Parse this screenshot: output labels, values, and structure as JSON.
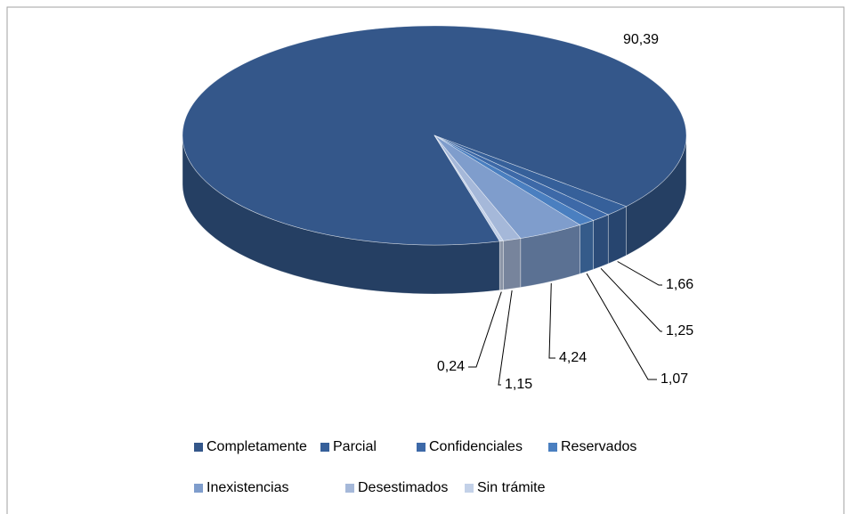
{
  "chart_data": {
    "type": "pie",
    "categories": [
      "Completamente",
      "Parcial",
      "Confidenciales",
      "Reservados",
      "Inexistencias",
      "Desestimados",
      "Sin trámite"
    ],
    "values": [
      90.39,
      1.66,
      1.25,
      1.07,
      4.24,
      1.15,
      0.24
    ],
    "value_labels": [
      "90,39",
      "1,66",
      "1,25",
      "1,07",
      "4,24",
      "1,15",
      "0,24"
    ],
    "colors": [
      "#34578a",
      "#36609a",
      "#3d69a8",
      "#4a7fc0",
      "#7f9dcc",
      "#a5b8d9",
      "#c3d1e8"
    ],
    "legend": "bottom"
  }
}
